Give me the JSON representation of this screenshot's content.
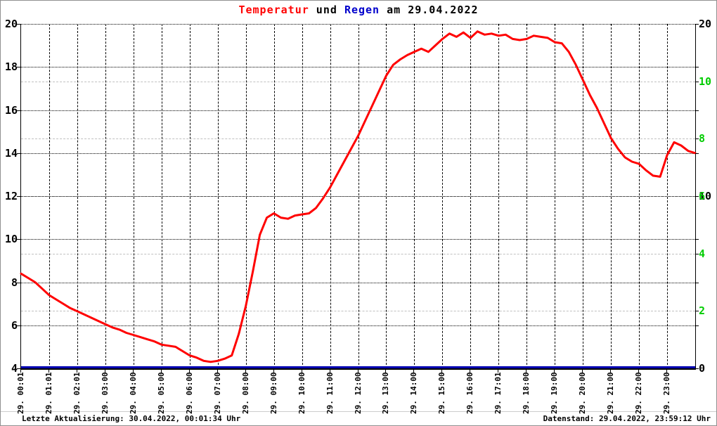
{
  "title": {
    "part1": "Temperatur",
    "part2": " und ",
    "part3": "Regen",
    "part4": " am 29.04.2022"
  },
  "footer": {
    "left": "Letzte Aktualisierung: 30.04.2022, 00:01:34 Uhr",
    "right": "Datenstand: 29.04.2022, 23:59:12 Uhr"
  },
  "colors": {
    "temperature": "#ff0000",
    "rain": "#0000b0",
    "title_temp": "#ff0000",
    "title_rain": "#0000cc",
    "green_axis": "#00cc00",
    "black_axis": "#000000",
    "grid_black": "#000000",
    "grid_gray": "#c0c0c0"
  },
  "chart_data": {
    "type": "line",
    "title": "Temperatur und Regen am 29.04.2022",
    "grid": true,
    "x_tick_labels": [
      "29. 00:01",
      "29. 01:01",
      "29. 02:01",
      "29. 03:00",
      "29. 04:00",
      "29. 05:00",
      "29. 06:00",
      "29. 07:00",
      "29. 08:00",
      "29. 09:00",
      "29. 10:00",
      "29. 11:00",
      "29. 12:00",
      "29. 13:00",
      "29. 14:00",
      "29. 15:00",
      "29. 16:00",
      "29. 17:01",
      "29. 18:00",
      "29. 19:00",
      "29. 20:00",
      "29. 21:00",
      "29. 22:00",
      "29. 23:00"
    ],
    "x_hours": {
      "start": 0,
      "end": 24,
      "step_hours": 1
    },
    "left_axis": {
      "label_values": [
        4,
        6,
        8,
        10,
        12,
        14,
        16,
        18,
        20
      ],
      "min": 4,
      "max": 20,
      "color": "#000000"
    },
    "right_axis_black": {
      "label_values": [
        0,
        10,
        20
      ],
      "min": 0,
      "max": 20,
      "color": "#000000"
    },
    "right_axis_green": {
      "label_values": [
        2,
        4,
        6,
        8,
        10
      ],
      "min": 0,
      "max": 12,
      "color": "#00cc00"
    },
    "hgrid_black_at_left_values": [
      6,
      8,
      10,
      12,
      14,
      16,
      18,
      20
    ],
    "hgrid_gray_at_green_values": [
      2,
      4,
      6,
      8,
      10
    ],
    "series": [
      {
        "name": "Temperatur",
        "axis": "left",
        "color": "#ff0000",
        "stroke_width": 3,
        "sample_step_hours": 0.25,
        "values": [
          8.4,
          8.2,
          8.0,
          7.7,
          7.4,
          7.2,
          7.0,
          6.8,
          6.65,
          6.5,
          6.35,
          6.2,
          6.05,
          5.9,
          5.8,
          5.65,
          5.55,
          5.45,
          5.35,
          5.25,
          5.1,
          5.05,
          5.0,
          4.8,
          4.6,
          4.5,
          4.35,
          4.3,
          4.35,
          4.45,
          4.6,
          5.6,
          6.9,
          8.5,
          10.2,
          11.0,
          11.2,
          11.0,
          10.95,
          11.1,
          11.15,
          11.2,
          11.45,
          11.9,
          12.4,
          13.0,
          13.6,
          14.2,
          14.8,
          15.5,
          16.2,
          16.9,
          17.6,
          18.1,
          18.35,
          18.55,
          18.7,
          18.85,
          18.7,
          19.0,
          19.3,
          19.55,
          19.4,
          19.6,
          19.35,
          19.65,
          19.5,
          19.55,
          19.45,
          19.5,
          19.3,
          19.25,
          19.3,
          19.45,
          19.4,
          19.35,
          19.15,
          19.1,
          18.7,
          18.1,
          17.4,
          16.7,
          16.1,
          15.4,
          14.7,
          14.2,
          13.8,
          13.6,
          13.5,
          13.2,
          12.95,
          12.9,
          13.9,
          14.5,
          14.35,
          14.1,
          14.0
        ]
      },
      {
        "name": "Regen",
        "axis": "right_green",
        "color": "#0000b0",
        "stroke_width": 3,
        "constant_value": 0
      }
    ]
  }
}
